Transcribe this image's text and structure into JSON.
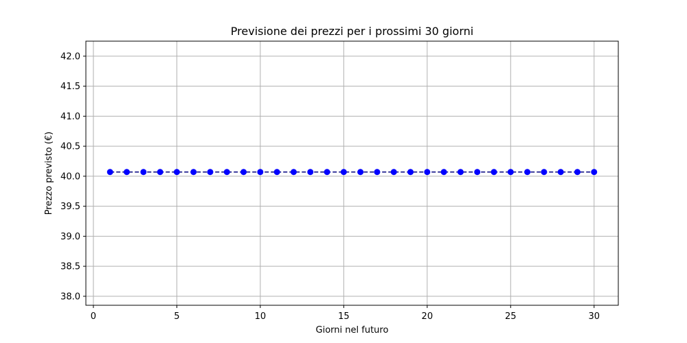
{
  "chart_data": {
    "type": "line",
    "title": "Previsione dei prezzi per i prossimi 30 giorni",
    "xlabel": "Giorni nel futuro",
    "ylabel": "Prezzo previsto (€)",
    "x": [
      1,
      2,
      3,
      4,
      5,
      6,
      7,
      8,
      9,
      10,
      11,
      12,
      13,
      14,
      15,
      16,
      17,
      18,
      19,
      20,
      21,
      22,
      23,
      24,
      25,
      26,
      27,
      28,
      29,
      30
    ],
    "series": [
      {
        "values": [
          40.07,
          40.07,
          40.07,
          40.07,
          40.07,
          40.07,
          40.07,
          40.07,
          40.07,
          40.07,
          40.07,
          40.07,
          40.07,
          40.07,
          40.07,
          40.07,
          40.07,
          40.07,
          40.07,
          40.07,
          40.07,
          40.07,
          40.07,
          40.07,
          40.07,
          40.07,
          40.07,
          40.07,
          40.07,
          40.07
        ],
        "color": "#0000ff",
        "line_color": "#000080",
        "line_style": "dashed",
        "marker": "circle"
      }
    ],
    "xlim": [
      -0.45,
      31.45
    ],
    "ylim": [
      37.85,
      42.25
    ],
    "xticks": [
      0,
      5,
      10,
      15,
      20,
      25,
      30
    ],
    "yticks": [
      38.0,
      38.5,
      39.0,
      39.5,
      40.0,
      40.5,
      41.0,
      41.5,
      42.0
    ],
    "xtick_labels": [
      "0",
      "5",
      "10",
      "15",
      "20",
      "25",
      "30"
    ],
    "ytick_labels": [
      "38.0",
      "38.5",
      "39.0",
      "39.5",
      "40.0",
      "40.5",
      "41.0",
      "41.5",
      "42.0"
    ],
    "grid": true
  }
}
